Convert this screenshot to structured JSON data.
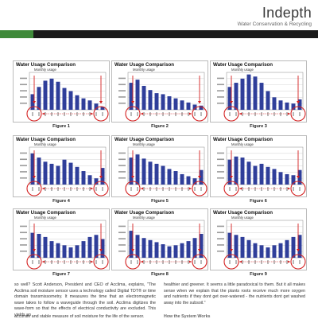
{
  "header": {
    "title": "Indepth",
    "subtitle": "Water Conservation & Recycling"
  },
  "colors": {
    "bar": "#2f3e9a",
    "arrow": "#d42020",
    "band_green": "#3f8a3a",
    "band_black": "#1a1a1a"
  },
  "panel_title": "Water Usage Comparison",
  "panel_subtitle": "Monthly usage",
  "figures": [
    {
      "label": "Figure 1",
      "values": [
        15,
        22,
        28,
        30,
        27,
        21,
        18,
        14,
        11,
        9,
        6,
        3
      ]
    },
    {
      "label": "Figure 2",
      "values": [
        26,
        29,
        23,
        19,
        16,
        15,
        13,
        11,
        9,
        7,
        5,
        4
      ]
    },
    {
      "label": "Figure 3",
      "values": [
        22,
        26,
        30,
        34,
        32,
        26,
        18,
        12,
        9,
        7,
        6,
        10
      ]
    },
    {
      "label": "Figure 4",
      "values": [
        30,
        26,
        22,
        20,
        18,
        24,
        21,
        17,
        13,
        9,
        6,
        16
      ]
    },
    {
      "label": "Figure 5",
      "values": [
        26,
        29,
        25,
        22,
        20,
        18,
        15,
        13,
        10,
        8,
        6,
        14
      ]
    },
    {
      "label": "Figure 6",
      "values": [
        24,
        27,
        26,
        22,
        18,
        20,
        17,
        15,
        12,
        10,
        9,
        14
      ]
    },
    {
      "label": "Figure 7",
      "values": [
        24,
        23,
        20,
        16,
        14,
        12,
        10,
        12,
        16,
        20,
        22,
        18
      ]
    },
    {
      "label": "Figure 8",
      "values": [
        26,
        22,
        19,
        17,
        15,
        13,
        11,
        12,
        14,
        16,
        19,
        23
      ]
    },
    {
      "label": "Figure 9",
      "values": [
        24,
        22,
        20,
        17,
        14,
        12,
        10,
        12,
        14,
        17,
        20,
        22
      ]
    }
  ],
  "body_left": "so well? Scott Anderson, President and CEO of Acclima, explains, \"The Acclima soil moisture sensor uses a technology called Digital TDT® or time domain transmissometry. It measures the time that an electromagnetic wave takes to follow a waveguide through the soil. Acclima digitizes the wave-form so that the effects of electrical conductivity are excluded. This yields an",
  "body_right": "healthier and greener. It seems a little paradoxical to them. But it all makes sense when we explain that the plants roots receive much more oxygen and nutrients if they dont get over-watered - the nutrients dont get washed away into the subsoil.\"",
  "footer_left": "accurate and stable measure of soil moisture for the life of the sensor.",
  "footer_right": "How the System Works"
}
